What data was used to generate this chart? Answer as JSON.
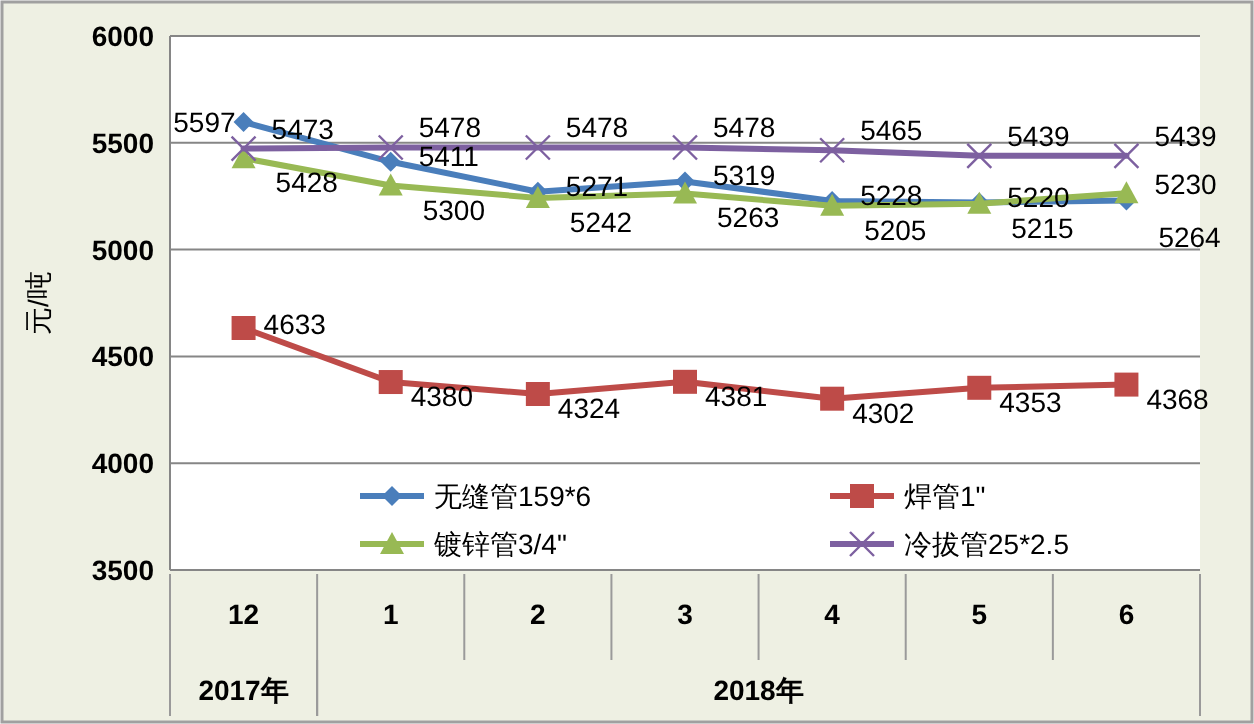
{
  "chart_data": {
    "type": "line",
    "ylabel": "元/吨",
    "categories": [
      "12",
      "1",
      "2",
      "3",
      "4",
      "5",
      "6"
    ],
    "ylim": [
      3500,
      6000
    ],
    "yticks": [
      3500,
      4000,
      4500,
      5000,
      5500,
      6000
    ],
    "grid": "y",
    "legend": "bottom",
    "data_labels": true,
    "series": [
      {
        "name": "无缝管159*6",
        "color": "#4a7ebb",
        "marker": "diamond",
        "values": [
          5597,
          5411,
          5271,
          5319,
          5228,
          5220,
          5230
        ]
      },
      {
        "name": "焊管1\"",
        "color": "#be4b48",
        "marker": "square",
        "values": [
          4633,
          4380,
          4324,
          4381,
          4302,
          4353,
          4368
        ]
      },
      {
        "name": "镀锌管3/4\"",
        "color": "#98b954",
        "marker": "triangle",
        "values": [
          5428,
          5300,
          5242,
          5263,
          5205,
          5215,
          5264
        ]
      },
      {
        "name": "冷拔管25*2.5",
        "color": "#7d60a0",
        "marker": "cross",
        "values": [
          5473,
          5478,
          5478,
          5478,
          5465,
          5439,
          5439
        ]
      }
    ],
    "annotations": [
      "2017年",
      "2018年"
    ]
  }
}
